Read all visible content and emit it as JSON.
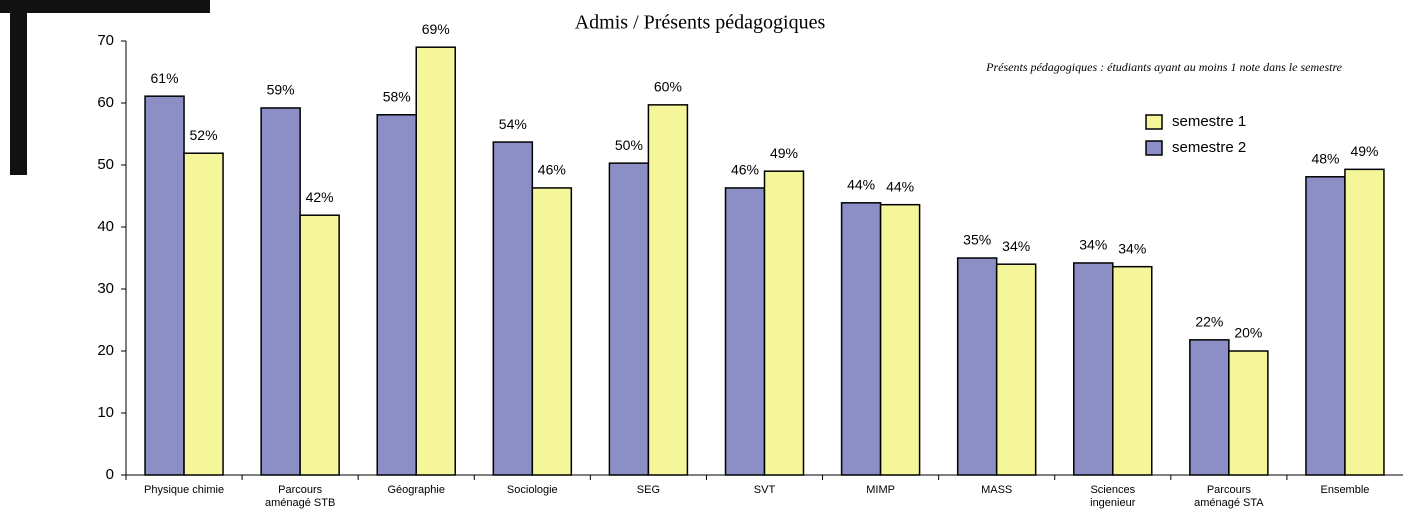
{
  "chart_data": {
    "type": "bar",
    "title": "Admis / Présents pédagogiques",
    "annotation": "Présents pédagogiques : étudiants ayant au moins 1 note dans le semestre",
    "categories": [
      [
        "Physique chimie"
      ],
      [
        "Parcours",
        "aménagé STB"
      ],
      [
        "Géographie"
      ],
      [
        "Sociologie"
      ],
      [
        "SEG"
      ],
      [
        "SVT"
      ],
      [
        "MIMP"
      ],
      [
        "MASS"
      ],
      [
        "Sciences",
        "ingenieur"
      ],
      [
        "Parcours",
        "aménagé STA"
      ],
      [
        "Ensemble"
      ]
    ],
    "series": [
      {
        "name": "semestre 2",
        "color": "#8c8fc6",
        "values": [
          61.1,
          59.2,
          58.1,
          53.7,
          50.3,
          46.3,
          43.9,
          35.0,
          34.2,
          21.8,
          48.1
        ],
        "value_labels": [
          "61%",
          "59%",
          "58%",
          "54%",
          "50%",
          "46%",
          "44%",
          "35%",
          "34%",
          "22%",
          "48%"
        ]
      },
      {
        "name": "semestre 1",
        "color": "#f5f59a",
        "values": [
          51.9,
          41.9,
          69.0,
          46.3,
          59.7,
          49.0,
          43.6,
          34.0,
          33.6,
          20.0,
          49.3
        ],
        "value_labels": [
          "52%",
          "42%",
          "69%",
          "46%",
          "60%",
          "49%",
          "44%",
          "34%",
          "34%",
          "20%",
          "49%"
        ]
      }
    ],
    "legend_order": [
      1,
      0
    ],
    "ylim": [
      0,
      70
    ],
    "yticks": [
      0,
      10,
      20,
      30,
      40,
      50,
      60,
      70
    ],
    "grid": false
  }
}
